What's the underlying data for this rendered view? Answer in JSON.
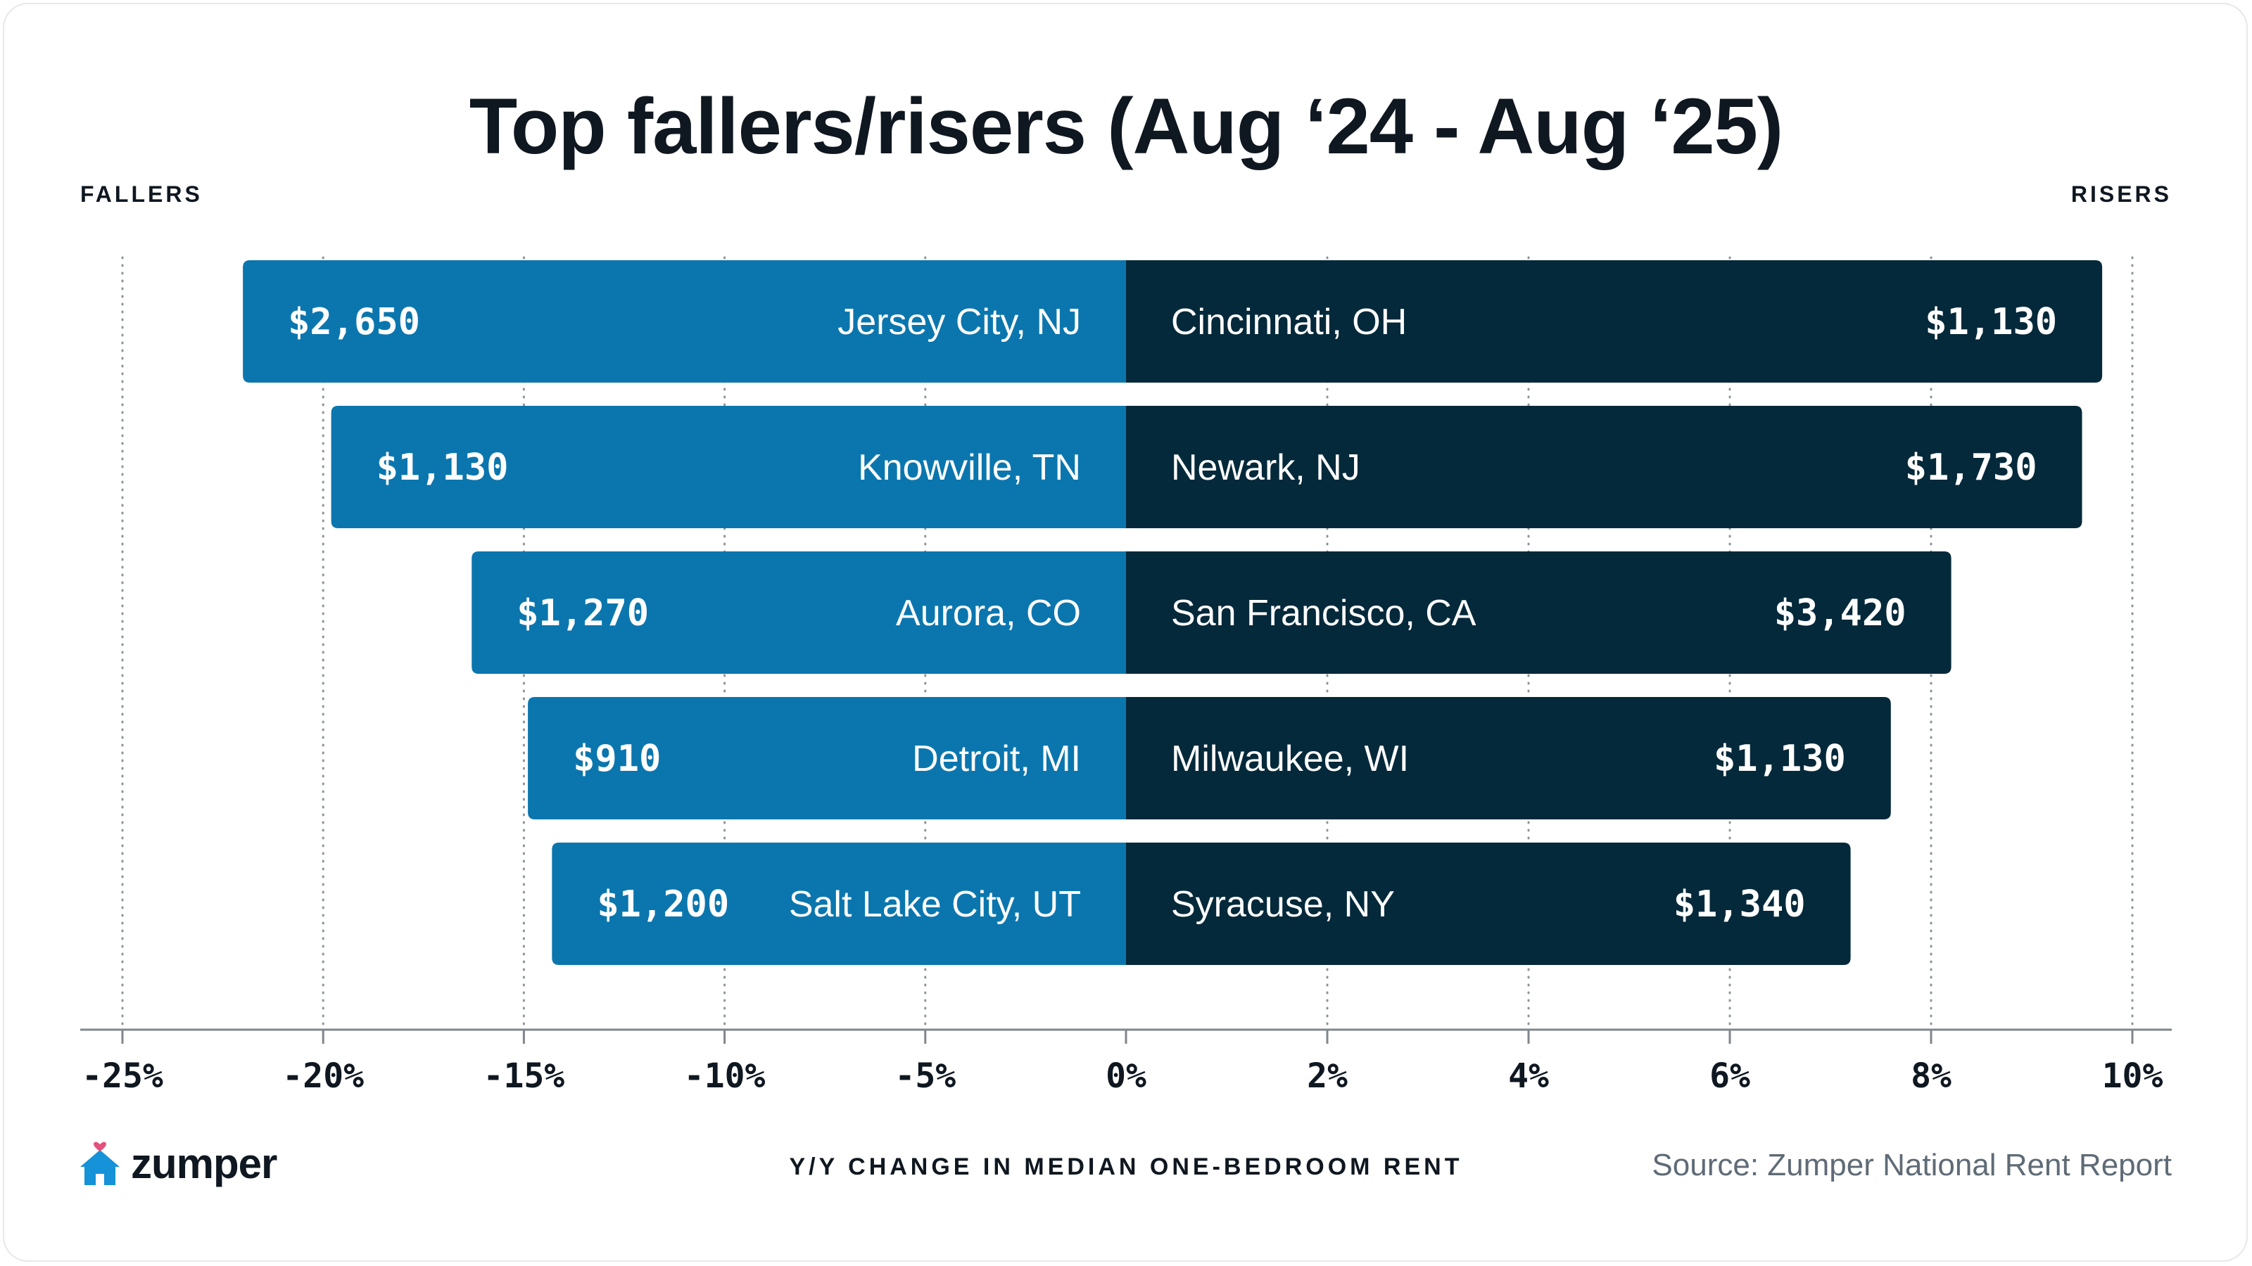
{
  "title": "Top fallers/risers (Aug ‘24 - Aug ‘25)",
  "labels": {
    "fallers": "FALLERS",
    "risers": "RISERS"
  },
  "footer": {
    "axis_title": "Y/Y CHANGE IN MEDIAN ONE-BEDROOM RENT",
    "source": "Source: Zumper National Rent Report",
    "logo_text": "zumper"
  },
  "colors": {
    "fallers_bar": "#0b76ae",
    "risers_bar": "#04293a",
    "bar_text": "#ffffff",
    "axis": "#7f868c",
    "grid": "#8c949a",
    "logo_house": "#1592d8",
    "logo_heart": "#e2527a"
  },
  "chart_data": {
    "type": "bar",
    "orientation": "horizontal-diverging",
    "left_axis": {
      "ticks": [
        -25,
        -20,
        -15,
        -10,
        -5,
        0
      ],
      "tick_labels": [
        "-25%",
        "-20%",
        "-15%",
        "-10%",
        "-5%",
        "0%"
      ],
      "range": [
        -25,
        0
      ]
    },
    "right_axis": {
      "ticks": [
        0,
        2,
        4,
        6,
        8,
        10
      ],
      "tick_labels": [
        "0%",
        "2%",
        "4%",
        "6%",
        "8%",
        "10%"
      ],
      "range": [
        0,
        10
      ]
    },
    "grid": true,
    "fallers": [
      {
        "city": "Jersey City, NJ",
        "rent": "$2,650",
        "change": -22.0
      },
      {
        "city": "Knowville, TN",
        "rent": "$1,130",
        "change": -19.8
      },
      {
        "city": "Aurora, CO",
        "rent": "$1,270",
        "change": -16.3
      },
      {
        "city": "Detroit, MI",
        "rent": "$910",
        "change": -14.9
      },
      {
        "city": "Salt Lake City, UT",
        "rent": "$1,200",
        "change": -14.3
      }
    ],
    "risers": [
      {
        "city": "Cincinnati, OH",
        "rent": "$1,130",
        "change": 9.7
      },
      {
        "city": "Newark, NJ",
        "rent": "$1,730",
        "change": 9.5
      },
      {
        "city": "San Francisco, CA",
        "rent": "$3,420",
        "change": 8.2
      },
      {
        "city": "Milwaukee, WI",
        "rent": "$1,130",
        "change": 7.6
      },
      {
        "city": "Syracuse, NY",
        "rent": "$1,340",
        "change": 7.2
      }
    ]
  }
}
